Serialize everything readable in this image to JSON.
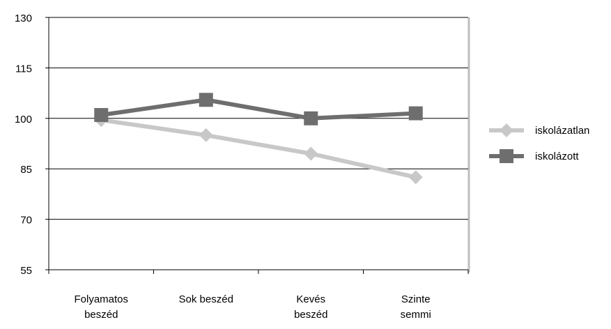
{
  "chart_data": {
    "type": "line",
    "categories": [
      [
        "Folyamatos",
        "beszéd"
      ],
      [
        "Sok beszéd"
      ],
      [
        "Kevés",
        "beszéd"
      ],
      [
        "Szinte",
        "semmi"
      ]
    ],
    "series": [
      {
        "name": "iskolázatlan",
        "values": [
          99.5,
          95,
          89.5,
          82.5
        ],
        "color": "#c8c8c8",
        "marker": "diamond"
      },
      {
        "name": "iskolázott",
        "values": [
          101,
          105.5,
          100,
          101.5
        ],
        "color": "#6e6e6e",
        "marker": "square"
      }
    ],
    "ylim": [
      55,
      130
    ],
    "yticks": [
      55,
      70,
      85,
      100,
      115,
      130
    ],
    "grid": true,
    "legend_position": "right",
    "title": "",
    "xlabel": "",
    "ylabel": ""
  }
}
